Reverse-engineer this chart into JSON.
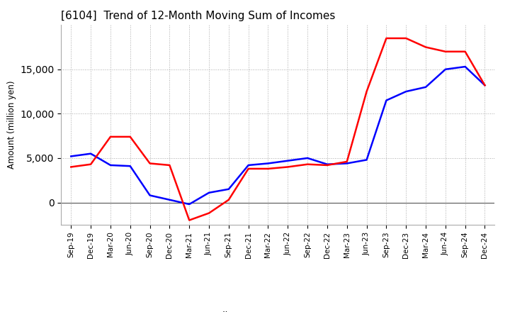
{
  "title": "[6104]  Trend of 12-Month Moving Sum of Incomes",
  "ylabel": "Amount (million yen)",
  "background_color": "#ffffff",
  "grid_color": "#aaaaaa",
  "ordinary_income_color": "#0000ff",
  "net_income_color": "#ff0000",
  "x_labels": [
    "Sep-19",
    "Dec-19",
    "Mar-20",
    "Jun-20",
    "Sep-20",
    "Dec-20",
    "Mar-21",
    "Jun-21",
    "Sep-21",
    "Dec-21",
    "Mar-22",
    "Jun-22",
    "Sep-22",
    "Dec-22",
    "Mar-23",
    "Jun-23",
    "Sep-23",
    "Dec-23",
    "Mar-24",
    "Jun-24",
    "Sep-24",
    "Dec-24"
  ],
  "ordinary_income": [
    5200,
    5500,
    4200,
    4100,
    800,
    300,
    -200,
    1100,
    1500,
    4200,
    4400,
    4700,
    5000,
    4300,
    4400,
    4800,
    11500,
    12500,
    13000,
    15000,
    15300,
    13200
  ],
  "net_income": [
    4000,
    4300,
    7400,
    7400,
    4400,
    4200,
    -2000,
    -1200,
    300,
    3800,
    3800,
    4000,
    4300,
    4200,
    4600,
    12500,
    18500,
    18500,
    17500,
    17000,
    17000,
    13200
  ],
  "ylim": [
    -2500,
    20000
  ],
  "yticks": [
    0,
    5000,
    10000,
    15000
  ],
  "linewidth": 1.8
}
